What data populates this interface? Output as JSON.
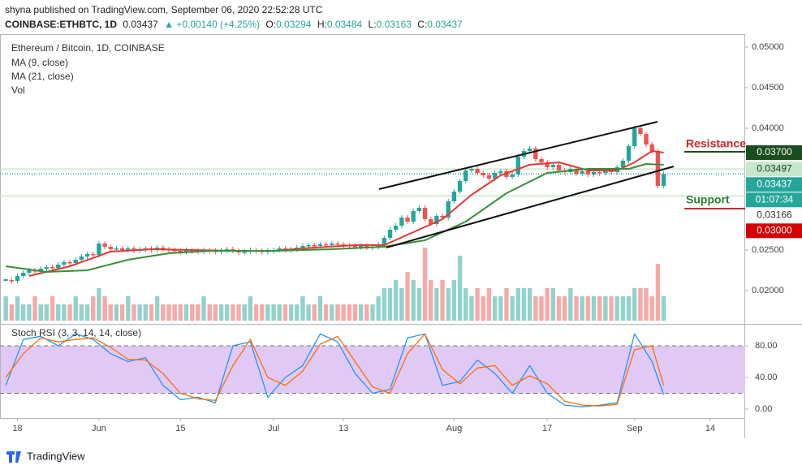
{
  "header": {
    "published": "shyna published on TradingView.com, September 06, 2020 22:52:28 UTC",
    "symbol": "COINBASE:ETHBTC, 1D",
    "last": "0.03437",
    "change": "▲ +0.00140 (+4.25%)",
    "ohlc": [
      {
        "label": "O:",
        "value": "0.03294"
      },
      {
        "label": "H:",
        "value": "0.03484"
      },
      {
        "label": "L:",
        "value": "0.03163"
      },
      {
        "label": "C:",
        "value": "0.03437"
      }
    ]
  },
  "legend": {
    "title": "Ethereum / Bitcoin, 1D, COINBASE",
    "volume": "Vol"
  },
  "annotations": {
    "resistance": "Resistance",
    "support": "Support"
  },
  "footer": "TradingView",
  "chart_data": [
    {
      "type": "candlestick",
      "start_date": "2020-05-16",
      "up_color": "#26a69a",
      "down_color": "#ef5350",
      "xlim": [
        "2020-05-15",
        "2020-09-20"
      ],
      "ylim": [
        0.0166,
        0.0516
      ],
      "volume_lim": [
        0,
        10
      ],
      "closes": [
        0.0213,
        0.0212,
        0.0218,
        0.0222,
        0.0225,
        0.0224,
        0.0227,
        0.0229,
        0.0228,
        0.0232,
        0.0235,
        0.0234,
        0.0238,
        0.0242,
        0.0245,
        0.0244,
        0.0258,
        0.0254,
        0.0251,
        0.0252,
        0.025,
        0.0252,
        0.0249,
        0.0251,
        0.0252,
        0.025,
        0.0253,
        0.0251,
        0.025,
        0.0249,
        0.0248,
        0.025,
        0.0249,
        0.0248,
        0.025,
        0.0249,
        0.0248,
        0.025,
        0.0251,
        0.0249,
        0.0247,
        0.0248,
        0.025,
        0.0249,
        0.0248,
        0.0249,
        0.025,
        0.0252,
        0.025,
        0.0251,
        0.0253,
        0.0255,
        0.0256,
        0.0255,
        0.0257,
        0.0256,
        0.0258,
        0.0257,
        0.0256,
        0.0255,
        0.0254,
        0.0255,
        0.0253,
        0.0254,
        0.0257,
        0.0265,
        0.0275,
        0.028,
        0.029,
        0.0285,
        0.0298,
        0.0302,
        0.0288,
        0.0282,
        0.0292,
        0.029,
        0.031,
        0.0322,
        0.0335,
        0.0348,
        0.035,
        0.0345,
        0.0342,
        0.0338,
        0.0345,
        0.0347,
        0.034,
        0.0343,
        0.0365,
        0.0372,
        0.0375,
        0.0362,
        0.0358,
        0.0352,
        0.0355,
        0.0348,
        0.0346,
        0.035,
        0.0344,
        0.0347,
        0.0343,
        0.0346,
        0.0345,
        0.0348,
        0.0346,
        0.0352,
        0.036,
        0.0378,
        0.04,
        0.0393,
        0.038,
        0.0372,
        0.0329,
        0.03437
      ],
      "volumes": [
        3,
        2,
        3,
        2,
        2,
        3,
        2,
        2,
        3,
        2,
        2,
        2,
        3,
        2,
        2,
        3,
        4,
        3,
        2,
        2,
        2,
        3,
        2,
        2,
        2,
        2,
        3,
        2,
        2,
        2,
        2,
        2,
        2,
        2,
        3,
        2,
        2,
        2,
        2,
        2,
        2,
        2,
        3,
        2,
        2,
        2,
        2,
        2,
        2,
        2,
        2,
        3,
        2,
        2,
        3,
        2,
        2,
        2,
        2,
        2,
        2,
        2,
        2,
        2,
        3,
        4,
        4,
        5,
        4,
        6,
        5,
        4,
        9,
        5,
        4,
        5,
        4,
        5,
        8,
        4,
        3,
        4,
        3,
        4,
        3,
        3,
        4,
        3,
        4,
        4,
        4,
        3,
        3,
        4,
        4,
        3,
        3,
        4,
        3,
        3,
        3,
        3,
        3,
        3,
        3,
        3,
        3,
        3,
        4,
        4,
        4,
        3,
        7,
        3
      ],
      "series": [
        {
          "name": "MA (9, close)",
          "color": "#e53935",
          "x": [
            "2020-05-20",
            "2020-05-27",
            "2020-06-03",
            "2020-06-10",
            "2020-06-17",
            "2020-06-24",
            "2020-07-01",
            "2020-07-08",
            "2020-07-15",
            "2020-07-20",
            "2020-07-25",
            "2020-07-30",
            "2020-08-04",
            "2020-08-09",
            "2020-08-14",
            "2020-08-19",
            "2020-08-24",
            "2020-08-29",
            "2020-09-01",
            "2020-09-04",
            "2020-09-06"
          ],
          "values": [
            0.0218,
            0.023,
            0.0248,
            0.0251,
            0.025,
            0.0249,
            0.0249,
            0.0253,
            0.0256,
            0.0256,
            0.0272,
            0.0288,
            0.0318,
            0.0342,
            0.0355,
            0.0358,
            0.0348,
            0.0348,
            0.0358,
            0.0372,
            0.037
          ]
        },
        {
          "name": "MA (21, close)",
          "color": "#388e3c",
          "x": [
            "2020-05-16",
            "2020-05-23",
            "2020-05-30",
            "2020-06-06",
            "2020-06-13",
            "2020-06-20",
            "2020-07-01",
            "2020-07-11",
            "2020-07-20",
            "2020-07-27",
            "2020-08-03",
            "2020-08-10",
            "2020-08-17",
            "2020-08-24",
            "2020-08-31",
            "2020-09-03",
            "2020-09-06"
          ],
          "values": [
            0.023,
            0.0223,
            0.0225,
            0.0238,
            0.0246,
            0.0249,
            0.0249,
            0.0251,
            0.0254,
            0.0262,
            0.0285,
            0.032,
            0.0345,
            0.035,
            0.035,
            0.0356,
            0.0355
          ]
        }
      ],
      "yticks": [
        {
          "value": 0.05,
          "label": "0.05000"
        },
        {
          "value": 0.045,
          "label": "0.04500"
        },
        {
          "value": 0.04,
          "label": "0.04000"
        },
        {
          "value": 0.025,
          "label": "0.02500"
        },
        {
          "value": 0.02,
          "label": "0.02000"
        }
      ],
      "xticks": [
        {
          "value": "2020-05-18",
          "label": "18"
        },
        {
          "value": "2020-06-01",
          "label": "Jun"
        },
        {
          "value": "2020-06-15",
          "label": "15"
        },
        {
          "value": "2020-07-01",
          "label": "Jul"
        },
        {
          "value": "2020-07-13",
          "label": "13"
        },
        {
          "value": "2020-08-01",
          "label": "Aug"
        },
        {
          "value": "2020-08-17",
          "label": "17"
        },
        {
          "value": "2020-09-01",
          "label": "Sep"
        },
        {
          "value": "2020-09-14",
          "label": "14"
        }
      ],
      "price_labels": [
        {
          "value": 0.037,
          "label": "0.03700",
          "bg": "#1b4d20",
          "fg": "#ffffff"
        },
        {
          "value": 0.03497,
          "label": "0.03497",
          "bg": "#c8e6c9",
          "fg": "#1b3a1d",
          "line_color": "#c8e6c9"
        },
        {
          "value": 0.03437,
          "label": "0.03437",
          "bg": "#26a69a",
          "fg": "#ffffff",
          "line_color": "#26a69a"
        },
        {
          "label": "01:07:34",
          "bg": "#26a69a",
          "fg": "#ffffff"
        },
        {
          "value": 0.03166,
          "label": "0.03166",
          "bg": "#ffffff",
          "fg": "#333333",
          "line_color": "#c8e6c9"
        },
        {
          "value": 0.03,
          "label": "0.03000",
          "bg": "#d50000",
          "fg": "#ffffff"
        }
      ]
    },
    {
      "type": "line",
      "title": "Stoch RSI (3, 3, 14, 14, close)",
      "xlim": [
        "2020-05-15",
        "2020-09-20"
      ],
      "ylim": [
        -11.3,
        104.6
      ],
      "band": [
        20,
        80
      ],
      "band_color": "#e1c9f5",
      "x": [
        "2020-05-16",
        "2020-05-19",
        "2020-05-22",
        "2020-05-25",
        "2020-05-28",
        "2020-05-31",
        "2020-06-03",
        "2020-06-06",
        "2020-06-09",
        "2020-06-12",
        "2020-06-15",
        "2020-06-18",
        "2020-06-21",
        "2020-06-24",
        "2020-06-27",
        "2020-06-30",
        "2020-07-03",
        "2020-07-06",
        "2020-07-09",
        "2020-07-12",
        "2020-07-15",
        "2020-07-18",
        "2020-07-21",
        "2020-07-24",
        "2020-07-27",
        "2020-07-30",
        "2020-08-02",
        "2020-08-05",
        "2020-08-08",
        "2020-08-11",
        "2020-08-14",
        "2020-08-17",
        "2020-08-20",
        "2020-08-23",
        "2020-08-26",
        "2020-08-29",
        "2020-09-01",
        "2020-09-04",
        "2020-09-06"
      ],
      "series": [
        {
          "color": "#2196f3",
          "values": [
            30,
            88,
            92,
            80,
            95,
            88,
            70,
            60,
            65,
            30,
            12,
            15,
            8,
            80,
            85,
            15,
            40,
            55,
            95,
            85,
            45,
            20,
            25,
            90,
            95,
            30,
            35,
            62,
            45,
            20,
            55,
            20,
            5,
            3,
            5,
            8,
            95,
            60,
            18
          ]
        },
        {
          "color": "#ff6d00",
          "values": [
            40,
            70,
            90,
            85,
            88,
            90,
            78,
            63,
            62,
            45,
            20,
            13,
            11,
            55,
            88,
            40,
            30,
            48,
            82,
            92,
            60,
            28,
            20,
            70,
            95,
            50,
            32,
            52,
            55,
            30,
            42,
            32,
            10,
            5,
            4,
            6,
            75,
            80,
            30
          ]
        }
      ],
      "yticks": [
        {
          "value": 80,
          "label": "80.00"
        },
        {
          "value": 40,
          "label": "40.00"
        },
        {
          "value": 0,
          "label": "0.00"
        }
      ]
    }
  ]
}
